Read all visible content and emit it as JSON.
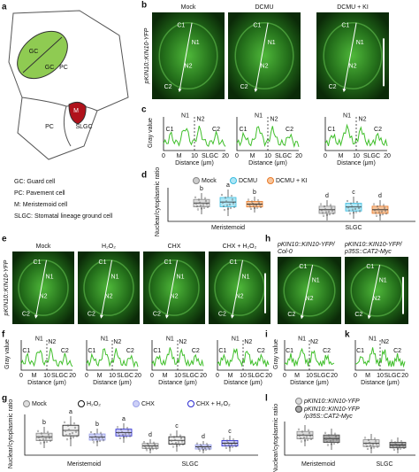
{
  "panel_labels": [
    "a",
    "b",
    "c",
    "d",
    "e",
    "f",
    "g",
    "h",
    "i",
    "k",
    "l"
  ],
  "a": {
    "cells": [
      "GC",
      "GC",
      "PC",
      "M",
      "PC",
      "SLGC"
    ],
    "legend": [
      "GC: Guard cell",
      "PC: Pavement cell",
      "M: Meristemoid cell",
      "SLGC: Stomatal lineage ground cell"
    ]
  },
  "b": {
    "reporter": "pKIN10::KIN10-YFP",
    "columns": [
      "Mock",
      "DCMU",
      "DCMU + KI"
    ]
  },
  "markers": [
    "C1",
    "N1",
    "N2",
    "C2"
  ],
  "profile": {
    "y_label": "Gray value",
    "x_label": "Distance (μm)",
    "x_ticks": [
      "0",
      "10",
      "20"
    ],
    "regions": [
      "M",
      "SLGC"
    ]
  },
  "d": {
    "legend": [
      "Mock",
      "DCMU",
      "DCMU + KI"
    ],
    "y_label": "Nuclear/cytoplasmic ratio",
    "groups": [
      "Meristemoid",
      "SLGC"
    ],
    "letters": [
      "b",
      "a",
      "b",
      "d",
      "c",
      "d"
    ]
  },
  "e": {
    "reporter": "pKIN10::KIN10-YFP",
    "columns": [
      "Mock",
      "H₂O₂",
      "CHX",
      "CHX + H₂O₂"
    ]
  },
  "h": {
    "columns": [
      [
        "pKIN10::KIN10-YFP/",
        "Col-0"
      ],
      [
        "pKIN10::KIN10-YFP/",
        "p35S::CAT2-Myc"
      ]
    ]
  },
  "g": {
    "legend": [
      "Mock",
      "H₂O₂",
      "CHX",
      "CHX + H₂O₂"
    ],
    "y_label": "Nuclear/cytoplasmic ratio",
    "groups": [
      "Meristemoid",
      "SLGC"
    ],
    "letters": [
      "b",
      "a",
      "b",
      "a",
      "d",
      "c",
      "d",
      "c"
    ]
  },
  "l": {
    "legend": [
      [
        "pKIN10::KIN10-YFP"
      ],
      [
        "pKIN10::KIN10-YFP",
        "/p35S::CAT2-Myc"
      ]
    ],
    "y_label": "Nuclear/cytoplasmic ratio",
    "groups": [
      "Meristemoid",
      "SLGC"
    ]
  }
}
